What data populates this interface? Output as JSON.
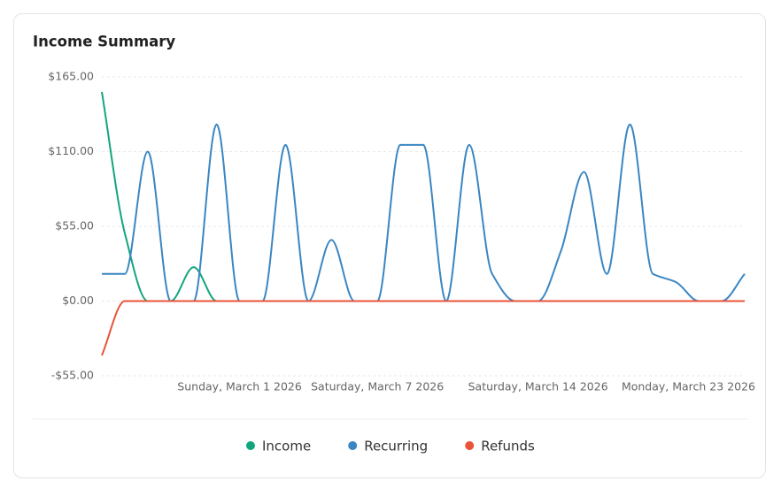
{
  "chart_data": {
    "type": "line",
    "title": "Income Summary",
    "categories": [
      null,
      null,
      null,
      null,
      null,
      null,
      "Sunday, March 1 2026",
      null,
      null,
      null,
      null,
      null,
      "Saturday, March 7 2026",
      null,
      null,
      null,
      null,
      null,
      null,
      "Saturday, March 14 2026",
      null,
      null,
      null,
      null,
      null,
      null,
      null,
      null,
      "Monday, March 23 2026"
    ],
    "series": [
      {
        "name": "Income",
        "color": "#13a57f",
        "values": [
          154,
          50,
          0,
          0,
          25,
          0,
          0,
          0,
          0,
          0,
          0,
          0,
          0,
          0,
          0,
          0,
          0,
          0,
          0,
          0,
          0,
          0,
          0,
          0,
          0,
          0,
          0,
          0,
          0
        ]
      },
      {
        "name": "Recurring",
        "color": "#3a86c2",
        "values": [
          20,
          20,
          110,
          0,
          0,
          130,
          0,
          0,
          115,
          0,
          45,
          0,
          0,
          115,
          115,
          0,
          115,
          20,
          0,
          0,
          37,
          95,
          20,
          130,
          20,
          14,
          0,
          0,
          20
        ]
      },
      {
        "name": "Refunds",
        "color": "#e8533a",
        "values": [
          -40,
          0,
          0,
          0,
          0,
          0,
          0,
          0,
          0,
          0,
          0,
          0,
          0,
          0,
          0,
          0,
          0,
          0,
          0,
          0,
          0,
          0,
          0,
          0,
          0,
          0,
          0,
          0,
          0
        ]
      }
    ],
    "ylim": [
      -55,
      165
    ],
    "yticks": [
      {
        "value": -55,
        "label": "-$55.00"
      },
      {
        "value": 0,
        "label": "$0.00"
      },
      {
        "value": 55,
        "label": "$55.00"
      },
      {
        "value": 110,
        "label": "$110.00"
      },
      {
        "value": 165,
        "label": "$165.00"
      }
    ],
    "grid": true,
    "legend": "bottom"
  }
}
